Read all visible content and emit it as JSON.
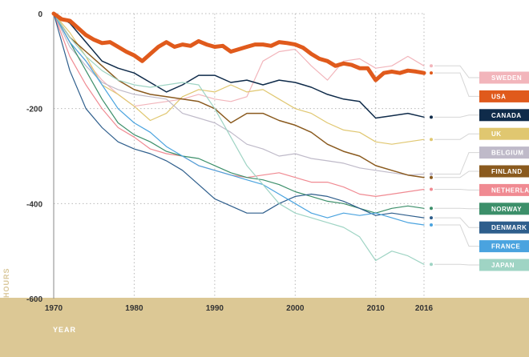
{
  "chart_data": {
    "type": "line",
    "title": "",
    "xlabel": "YEAR",
    "ylabel": "HOURS",
    "xlim": [
      1970,
      2016
    ],
    "ylim": [
      -600,
      0
    ],
    "x_ticks": [
      1970,
      1980,
      1990,
      2000,
      2010,
      2016
    ],
    "y_ticks": [
      0,
      -200,
      -400,
      -600
    ],
    "grid": "dotted",
    "legend_position": "right",
    "series": [
      {
        "name": "SWEDEN",
        "color": "#f2b5bb",
        "width": 1.2,
        "highlight": false,
        "x": [
          1970,
          1972,
          1974,
          1976,
          1978,
          1980,
          1982,
          1984,
          1986,
          1988,
          1990,
          1992,
          1994,
          1996,
          1998,
          2000,
          2002,
          2004,
          2006,
          2008,
          2010,
          2012,
          2014,
          2016
        ],
        "y": [
          0,
          -60,
          -100,
          -140,
          -170,
          -195,
          -190,
          -185,
          -180,
          -170,
          -180,
          -185,
          -175,
          -100,
          -80,
          -75,
          -110,
          -140,
          -100,
          -95,
          -115,
          -110,
          -90,
          -110
        ]
      },
      {
        "name": "USA",
        "color": "#e05a1c",
        "width": 5,
        "highlight": true,
        "x": [
          1970,
          1971,
          1972,
          1973,
          1974,
          1975,
          1976,
          1977,
          1978,
          1979,
          1980,
          1981,
          1982,
          1983,
          1984,
          1985,
          1986,
          1987,
          1988,
          1989,
          1990,
          1991,
          1992,
          1993,
          1994,
          1995,
          1996,
          1997,
          1998,
          1999,
          2000,
          2001,
          2002,
          2003,
          2004,
          2005,
          2006,
          2007,
          2008,
          2009,
          2010,
          2011,
          2012,
          2013,
          2014,
          2015,
          2016
        ],
        "y": [
          0,
          -12,
          -15,
          -30,
          -45,
          -55,
          -62,
          -60,
          -70,
          -80,
          -88,
          -100,
          -85,
          -70,
          -60,
          -70,
          -65,
          -68,
          -58,
          -65,
          -70,
          -68,
          -80,
          -75,
          -70,
          -65,
          -65,
          -68,
          -60,
          -62,
          -65,
          -72,
          -85,
          -95,
          -100,
          -110,
          -105,
          -108,
          -115,
          -115,
          -140,
          -125,
          -122,
          -125,
          -120,
          -122,
          -125
        ]
      },
      {
        "name": "CANADA",
        "color": "#0f2b4a",
        "width": 1.5,
        "highlight": false,
        "x": [
          1970,
          1972,
          1974,
          1976,
          1978,
          1980,
          1982,
          1984,
          1986,
          1988,
          1990,
          1992,
          1994,
          1996,
          1998,
          2000,
          2002,
          2004,
          2006,
          2008,
          2010,
          2012,
          2014,
          2016
        ],
        "y": [
          0,
          -20,
          -60,
          -100,
          -115,
          -125,
          -145,
          -165,
          -150,
          -130,
          -130,
          -145,
          -140,
          -150,
          -140,
          -145,
          -155,
          -170,
          -180,
          -185,
          -220,
          -215,
          -210,
          -218
        ]
      },
      {
        "name": "UK",
        "color": "#e0c770",
        "width": 1.2,
        "highlight": false,
        "x": [
          1970,
          1972,
          1974,
          1976,
          1978,
          1980,
          1982,
          1984,
          1986,
          1988,
          1990,
          1992,
          1994,
          1996,
          1998,
          2000,
          2002,
          2004,
          2006,
          2008,
          2010,
          2012,
          2014,
          2016
        ],
        "y": [
          0,
          -40,
          -90,
          -150,
          -170,
          -195,
          -225,
          -210,
          -175,
          -160,
          -165,
          -150,
          -165,
          -160,
          -180,
          -200,
          -210,
          -230,
          -245,
          -250,
          -270,
          -275,
          -270,
          -265
        ]
      },
      {
        "name": "BELGIUM",
        "color": "#bfbac9",
        "width": 1.2,
        "highlight": false,
        "x": [
          1970,
          1972,
          1974,
          1976,
          1978,
          1980,
          1982,
          1984,
          1986,
          1988,
          1990,
          1992,
          1994,
          1996,
          1998,
          2000,
          2002,
          2004,
          2006,
          2008,
          2010,
          2012,
          2014,
          2016
        ],
        "y": [
          0,
          -70,
          -110,
          -145,
          -160,
          -170,
          -175,
          -180,
          -210,
          -220,
          -230,
          -250,
          -275,
          -285,
          -300,
          -295,
          -305,
          -310,
          -315,
          -325,
          -330,
          -335,
          -340,
          -338
        ]
      },
      {
        "name": "FINLAND",
        "color": "#8a5a1e",
        "width": 1.5,
        "highlight": false,
        "x": [
          1970,
          1972,
          1974,
          1976,
          1978,
          1980,
          1982,
          1984,
          1986,
          1988,
          1990,
          1992,
          1994,
          1996,
          1998,
          2000,
          2002,
          2004,
          2006,
          2008,
          2010,
          2012,
          2014,
          2016
        ],
        "y": [
          0,
          -50,
          -80,
          -110,
          -140,
          -160,
          -170,
          -175,
          -180,
          -185,
          -200,
          -230,
          -210,
          -210,
          -225,
          -235,
          -250,
          -275,
          -290,
          -300,
          -320,
          -330,
          -340,
          -345
        ]
      },
      {
        "name": "NETHERLANDS",
        "color": "#f08a92",
        "width": 1.2,
        "highlight": false,
        "x": [
          1970,
          1972,
          1974,
          1976,
          1978,
          1980,
          1982,
          1984,
          1986,
          1988,
          1990,
          1992,
          1994,
          1996,
          1998,
          2000,
          2002,
          2004,
          2006,
          2008,
          2010,
          2012,
          2014,
          2016
        ],
        "y": [
          0,
          -90,
          -150,
          -200,
          -240,
          -260,
          -285,
          -295,
          -300,
          -320,
          -330,
          -340,
          -345,
          -340,
          -335,
          -345,
          -355,
          -355,
          -365,
          -380,
          -385,
          -380,
          -375,
          -370
        ]
      },
      {
        "name": "NORWAY",
        "color": "#3c8f6a",
        "width": 1.2,
        "highlight": false,
        "x": [
          1970,
          1972,
          1974,
          1976,
          1978,
          1980,
          1982,
          1984,
          1986,
          1988,
          1990,
          1992,
          1994,
          1996,
          1998,
          2000,
          2002,
          2004,
          2006,
          2008,
          2010,
          2012,
          2014,
          2016
        ],
        "y": [
          0,
          -60,
          -120,
          -180,
          -230,
          -255,
          -270,
          -290,
          -300,
          -305,
          -320,
          -335,
          -345,
          -350,
          -360,
          -375,
          -385,
          -395,
          -400,
          -410,
          -420,
          -410,
          -405,
          -410
        ]
      },
      {
        "name": "DENMARK",
        "color": "#2e5e8c",
        "width": 1.2,
        "highlight": false,
        "x": [
          1970,
          1972,
          1974,
          1976,
          1978,
          1980,
          1982,
          1984,
          1986,
          1988,
          1990,
          1992,
          1994,
          1996,
          1998,
          2000,
          2002,
          2004,
          2006,
          2008,
          2010,
          2012,
          2014,
          2016
        ],
        "y": [
          0,
          -120,
          -200,
          -240,
          -270,
          -285,
          -295,
          -310,
          -330,
          -360,
          -390,
          -405,
          -420,
          -420,
          -400,
          -385,
          -380,
          -385,
          -395,
          -410,
          -425,
          -420,
          -425,
          -430
        ]
      },
      {
        "name": "FRANCE",
        "color": "#4aa3df",
        "width": 1.2,
        "highlight": false,
        "x": [
          1970,
          1972,
          1974,
          1976,
          1978,
          1980,
          1982,
          1984,
          1986,
          1988,
          1990,
          1992,
          1994,
          1996,
          1998,
          2000,
          2002,
          2004,
          2006,
          2008,
          2010,
          2012,
          2014,
          2016
        ],
        "y": [
          0,
          -60,
          -100,
          -150,
          -200,
          -230,
          -250,
          -280,
          -300,
          -320,
          -330,
          -340,
          -350,
          -360,
          -380,
          -400,
          -420,
          -430,
          -420,
          -425,
          -420,
          -430,
          -440,
          -445
        ]
      },
      {
        "name": "JAPAN",
        "color": "#9fd4c4",
        "width": 1.2,
        "highlight": false,
        "x": [
          1970,
          1972,
          1974,
          1976,
          1978,
          1980,
          1982,
          1984,
          1986,
          1988,
          1990,
          1992,
          1994,
          1996,
          1998,
          2000,
          2002,
          2004,
          2006,
          2008,
          2010,
          2012,
          2014,
          2016
        ],
        "y": [
          0,
          -50,
          -90,
          -120,
          -140,
          -150,
          -155,
          -150,
          -145,
          -150,
          -200,
          -260,
          -320,
          -360,
          -400,
          -420,
          -430,
          -440,
          -450,
          -470,
          -520,
          -500,
          -510,
          -528
        ]
      }
    ]
  }
}
